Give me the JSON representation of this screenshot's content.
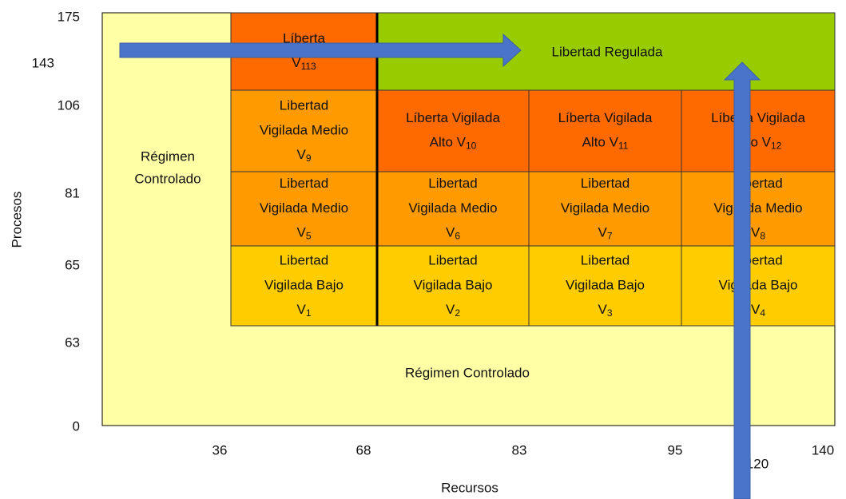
{
  "axes": {
    "y_label": "Procesos",
    "x_label": "Recursos",
    "y_ticks": [
      "175",
      "143",
      "106",
      "81",
      "65",
      "63",
      "0"
    ],
    "x_ticks": [
      "36",
      "68",
      "83",
      "95",
      "140",
      "120"
    ]
  },
  "background": {
    "color": "#ffffa6",
    "left_label": [
      "Régimen",
      "Controlado"
    ],
    "bottom_label": "Régimen Controlado"
  },
  "top_cell": {
    "lines": [
      "Líberta"
    ],
    "last": "V",
    "sub": "113",
    "color": "#ff6a00"
  },
  "regulated": {
    "label": "Libertad Regulada",
    "color": "#99cc00"
  },
  "rows": [
    [
      {
        "lines": [
          "Libertad",
          "Vigilada Medio"
        ],
        "last": "V",
        "sub": "9",
        "color": "#ff9a00"
      },
      {
        "lines": [
          "Líberta Vigilada"
        ],
        "last": "Alto V",
        "sub": "10",
        "color": "#ff6a00"
      },
      {
        "lines": [
          "Líberta Vigilada"
        ],
        "last": "Alto V",
        "sub": "11",
        "color": "#ff6a00"
      },
      {
        "lines": [
          "Líberta Vigilada"
        ],
        "last": "Alto V",
        "sub": "12",
        "color": "#ff6a00"
      }
    ],
    [
      {
        "lines": [
          "Libertad",
          "Vigilada Medio"
        ],
        "last": "V",
        "sub": "5",
        "color": "#ff9a00"
      },
      {
        "lines": [
          "Libertad",
          "Vigilada Medio"
        ],
        "last": "V",
        "sub": "6",
        "color": "#ff9a00"
      },
      {
        "lines": [
          "Libertad",
          "Vigilada Medio"
        ],
        "last": "V",
        "sub": "7",
        "color": "#ff9a00"
      },
      {
        "lines": [
          "Libertad",
          "Vigilada Medio"
        ],
        "last": "V",
        "sub": "8",
        "color": "#ff9a00"
      }
    ],
    [
      {
        "lines": [
          "Libertad",
          "Vigilada Bajo"
        ],
        "last": "V",
        "sub": "1",
        "color": "#ffcc00"
      },
      {
        "lines": [
          "Libertad",
          "Vigilada Bajo"
        ],
        "last": "V",
        "sub": "2",
        "color": "#ffcc00"
      },
      {
        "lines": [
          "Libertad",
          "Vigilada Bajo"
        ],
        "last": "V",
        "sub": "3",
        "color": "#ffcc00"
      },
      {
        "lines": [
          "Libertad",
          "Vigilada Bajo"
        ],
        "last": "V",
        "sub": "4",
        "color": "#ffcc00"
      }
    ]
  ],
  "arrow_color": "#4a74c9"
}
